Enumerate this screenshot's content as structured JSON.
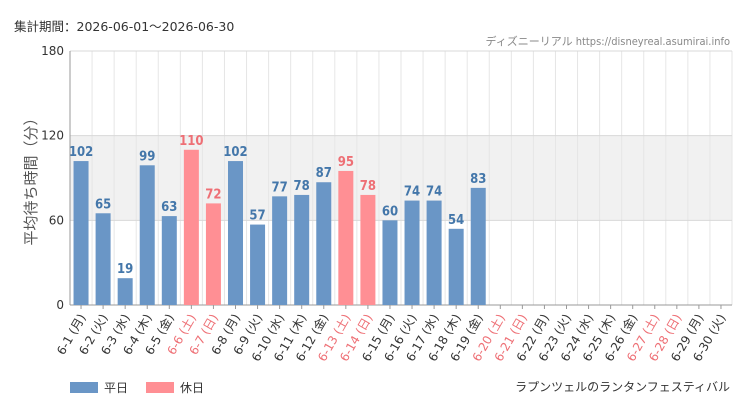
{
  "header": {
    "period_label": "集計期間：2026-06-01～2026-06-30",
    "credit": "ディズニーリアル https://disneyreal.asumirai.info"
  },
  "footer": {
    "attraction_name": "ラプンツェルのランタンフェスティバル"
  },
  "colors": {
    "weekday": "#6a96c6",
    "holiday": "#ff8f94",
    "holiday_label": "#ee6f75",
    "weekday_label": "#4477aa",
    "band": "#f1f1f1"
  },
  "chart_data": {
    "type": "bar",
    "ylabel": "平均待ち時間（分）",
    "ylim": [
      0,
      180
    ],
    "yticks": [
      0,
      60,
      120,
      180
    ],
    "highlight_band": [
      60,
      120
    ],
    "grid": true,
    "legend": {
      "position": "bottom-left",
      "entries": [
        "平日",
        "休日"
      ]
    },
    "categories": [
      "6-1 (月)",
      "6-2 (火)",
      "6-3 (水)",
      "6-4 (木)",
      "6-5 (金)",
      "6-6 (土)",
      "6-7 (日)",
      "6-8 (月)",
      "6-9 (火)",
      "6-10 (水)",
      "6-11 (木)",
      "6-12 (金)",
      "6-13 (土)",
      "6-14 (日)",
      "6-15 (月)",
      "6-16 (火)",
      "6-17 (水)",
      "6-18 (木)",
      "6-19 (金)",
      "6-20 (土)",
      "6-21 (日)",
      "6-22 (月)",
      "6-23 (火)",
      "6-24 (水)",
      "6-25 (木)",
      "6-26 (金)",
      "6-27 (土)",
      "6-28 (日)",
      "6-29 (月)",
      "6-30 (火)"
    ],
    "values": [
      102,
      65,
      19,
      99,
      63,
      110,
      72,
      102,
      57,
      77,
      78,
      87,
      95,
      78,
      60,
      74,
      74,
      54,
      83,
      null,
      null,
      null,
      null,
      null,
      null,
      null,
      null,
      null,
      null,
      null
    ],
    "holiday": [
      false,
      false,
      false,
      false,
      false,
      true,
      true,
      false,
      false,
      false,
      false,
      false,
      true,
      true,
      false,
      false,
      false,
      false,
      false,
      true,
      true,
      false,
      false,
      false,
      false,
      false,
      true,
      true,
      false,
      false
    ]
  }
}
